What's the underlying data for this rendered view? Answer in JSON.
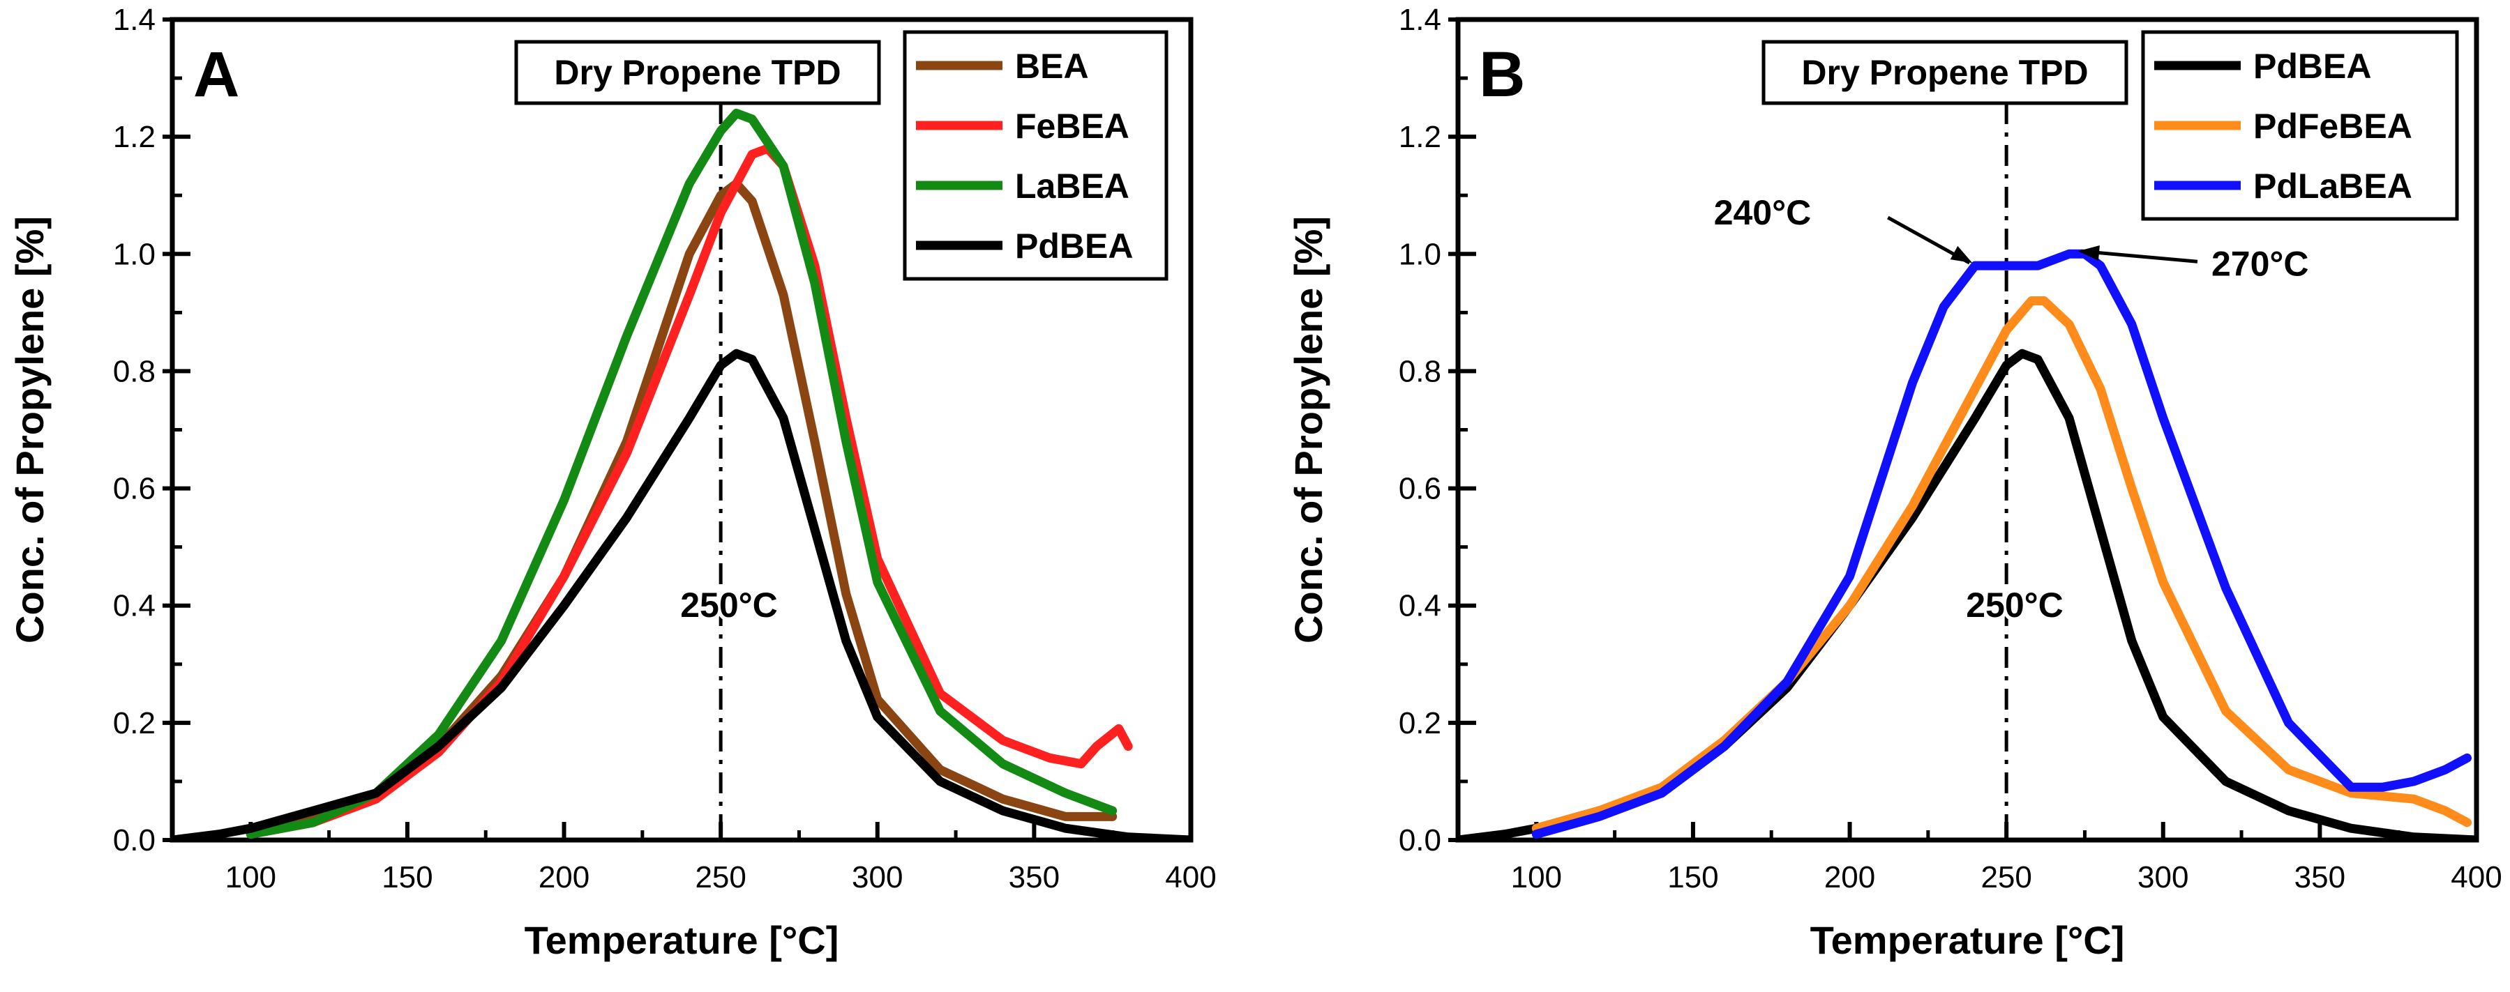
{
  "chart_data": [
    {
      "type": "line",
      "panel_label": "A",
      "title": "Dry Propene TPD",
      "xlabel": "Temperature [°C]",
      "ylabel": "Conc. of Propylene [%]",
      "xlim": [
        75,
        400
      ],
      "ylim": [
        0,
        1.4
      ],
      "xticks": [
        100,
        150,
        200,
        250,
        300,
        350,
        400
      ],
      "xtick_labels": [
        "100",
        "150",
        "200",
        "250",
        "300",
        "350",
        "400"
      ],
      "yticks": [
        0.0,
        0.2,
        0.4,
        0.6,
        0.8,
        1.0,
        1.2,
        1.4
      ],
      "ytick_labels": [
        "0.0",
        "0.2",
        "0.4",
        "0.6",
        "0.8",
        "1.0",
        "1.2",
        "1.4"
      ],
      "legend_position": "top-right",
      "grid": false,
      "reference_line": {
        "x": 250,
        "label": "250°C"
      },
      "annotations": [],
      "series": [
        {
          "name": "BEA",
          "color": "#8B4513",
          "x": [
            100,
            120,
            140,
            160,
            180,
            200,
            220,
            240,
            250,
            255,
            260,
            270,
            280,
            290,
            300,
            320,
            340,
            360,
            375
          ],
          "y": [
            0.01,
            0.04,
            0.08,
            0.16,
            0.28,
            0.45,
            0.68,
            1.0,
            1.1,
            1.12,
            1.09,
            0.93,
            0.68,
            0.42,
            0.24,
            0.12,
            0.07,
            0.04,
            0.04
          ]
        },
        {
          "name": "FeBEA",
          "color": "#FF2020",
          "x": [
            100,
            120,
            140,
            160,
            180,
            200,
            220,
            240,
            250,
            260,
            265,
            270,
            280,
            290,
            300,
            320,
            340,
            355,
            365,
            370,
            377,
            380
          ],
          "y": [
            0.01,
            0.03,
            0.07,
            0.15,
            0.27,
            0.45,
            0.66,
            0.93,
            1.07,
            1.17,
            1.18,
            1.15,
            0.98,
            0.72,
            0.48,
            0.25,
            0.17,
            0.14,
            0.13,
            0.16,
            0.19,
            0.16
          ]
        },
        {
          "name": "LaBEA",
          "color": "#138A13",
          "x": [
            100,
            120,
            140,
            160,
            180,
            200,
            220,
            240,
            250,
            255,
            260,
            270,
            280,
            290,
            300,
            320,
            340,
            360,
            375
          ],
          "y": [
            0.01,
            0.03,
            0.08,
            0.18,
            0.34,
            0.58,
            0.86,
            1.12,
            1.21,
            1.24,
            1.23,
            1.15,
            0.95,
            0.68,
            0.44,
            0.22,
            0.13,
            0.08,
            0.05
          ]
        },
        {
          "name": "PdBEA",
          "color": "#000000",
          "x": [
            75,
            90,
            100,
            120,
            140,
            160,
            180,
            200,
            220,
            240,
            250,
            255,
            260,
            270,
            280,
            290,
            300,
            320,
            340,
            360,
            380,
            400
          ],
          "y": [
            0.0,
            0.01,
            0.02,
            0.05,
            0.08,
            0.16,
            0.26,
            0.4,
            0.55,
            0.72,
            0.81,
            0.83,
            0.82,
            0.72,
            0.53,
            0.34,
            0.21,
            0.1,
            0.05,
            0.02,
            0.005,
            0.0
          ]
        }
      ]
    },
    {
      "type": "line",
      "panel_label": "B",
      "title": "Dry Propene TPD",
      "xlabel": "Temperature [°C]",
      "ylabel": "Conc. of Propylene [%]",
      "xlim": [
        75,
        400
      ],
      "ylim": [
        0,
        1.4
      ],
      "xticks": [
        100,
        150,
        200,
        250,
        300,
        350,
        400
      ],
      "xtick_labels": [
        "100",
        "150",
        "200",
        "250",
        "300",
        "350",
        "400"
      ],
      "yticks": [
        0.0,
        0.2,
        0.4,
        0.6,
        0.8,
        1.0,
        1.2,
        1.4
      ],
      "ytick_labels": [
        "0.0",
        "0.2",
        "0.4",
        "0.6",
        "0.8",
        "1.0",
        "1.2",
        "1.4"
      ],
      "legend_position": "top-right",
      "grid": false,
      "reference_line": {
        "x": 250,
        "label": "250°C"
      },
      "annotations": [
        {
          "text": "240°C",
          "x": 240,
          "y": 0.98,
          "side": "left"
        },
        {
          "text": "270°C",
          "x": 272,
          "y": 1.0,
          "side": "right"
        }
      ],
      "series": [
        {
          "name": "PdBEA",
          "color": "#000000",
          "x": [
            75,
            90,
            100,
            120,
            140,
            160,
            180,
            200,
            220,
            240,
            250,
            255,
            260,
            270,
            280,
            290,
            300,
            320,
            340,
            360,
            380,
            400
          ],
          "y": [
            0.0,
            0.01,
            0.02,
            0.05,
            0.08,
            0.16,
            0.26,
            0.4,
            0.55,
            0.72,
            0.81,
            0.83,
            0.82,
            0.72,
            0.53,
            0.34,
            0.21,
            0.1,
            0.05,
            0.02,
            0.005,
            0.0
          ]
        },
        {
          "name": "PdFeBEA",
          "color": "#FF8C1A",
          "x": [
            100,
            120,
            140,
            160,
            180,
            200,
            220,
            240,
            250,
            258,
            262,
            270,
            280,
            290,
            300,
            320,
            340,
            360,
            380,
            390,
            397
          ],
          "y": [
            0.02,
            0.05,
            0.09,
            0.17,
            0.27,
            0.4,
            0.57,
            0.77,
            0.87,
            0.92,
            0.92,
            0.88,
            0.77,
            0.6,
            0.44,
            0.22,
            0.12,
            0.08,
            0.07,
            0.05,
            0.03
          ]
        },
        {
          "name": "PdLaBEA",
          "color": "#1010FF",
          "x": [
            100,
            120,
            140,
            160,
            180,
            200,
            220,
            230,
            240,
            250,
            260,
            270,
            275,
            280,
            290,
            300,
            320,
            340,
            360,
            370,
            380,
            390,
            397
          ],
          "y": [
            0.01,
            0.04,
            0.08,
            0.16,
            0.27,
            0.45,
            0.78,
            0.91,
            0.98,
            0.98,
            0.98,
            1.0,
            1.0,
            0.98,
            0.88,
            0.72,
            0.43,
            0.2,
            0.09,
            0.09,
            0.1,
            0.12,
            0.14
          ]
        }
      ]
    }
  ]
}
